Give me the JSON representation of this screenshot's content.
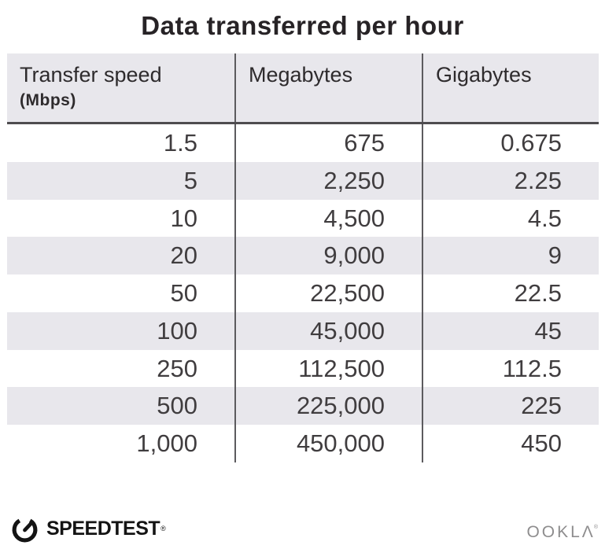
{
  "title": "Data transferred per hour",
  "table": {
    "columns": [
      {
        "label": "Transfer speed",
        "sublabel": "(Mbps)"
      },
      {
        "label": "Megabytes"
      },
      {
        "label": "Gigabytes"
      }
    ],
    "rows": [
      [
        "1.5",
        "675",
        "0.675"
      ],
      [
        "5",
        "2,250",
        "2.25"
      ],
      [
        "10",
        "4,500",
        "4.5"
      ],
      [
        "20",
        "9,000",
        "9"
      ],
      [
        "50",
        "22,500",
        "22.5"
      ],
      [
        "100",
        "45,000",
        "45"
      ],
      [
        "250",
        "112,500",
        "112.5"
      ],
      [
        "500",
        "225,000",
        "225"
      ],
      [
        "1,000",
        "450,000",
        "450"
      ]
    ]
  },
  "chart_data": {
    "type": "table",
    "title": "Data transferred per hour",
    "columns": [
      "Transfer speed (Mbps)",
      "Megabytes",
      "Gigabytes"
    ],
    "rows": [
      [
        1.5,
        675,
        0.675
      ],
      [
        5,
        2250,
        2.25
      ],
      [
        10,
        4500,
        4.5
      ],
      [
        20,
        9000,
        9
      ],
      [
        50,
        22500,
        22.5
      ],
      [
        100,
        45000,
        45
      ],
      [
        250,
        112500,
        112.5
      ],
      [
        500,
        225000,
        225
      ],
      [
        1000,
        450000,
        450
      ]
    ]
  },
  "footer": {
    "speedtest_label": "SPEEDTEST",
    "speedtest_trademark": "®",
    "ookla_label": "OOKLΛ",
    "ookla_trademark": "®"
  },
  "colors": {
    "stripe_bg": "#e8e7ec",
    "header_border": "#4e4c4f",
    "divider": "#5c5b5e",
    "title_text": "#272326",
    "body_text": "#403d3f",
    "speedtest_black": "#141414",
    "ookla_gray": "#8e8d8e"
  }
}
